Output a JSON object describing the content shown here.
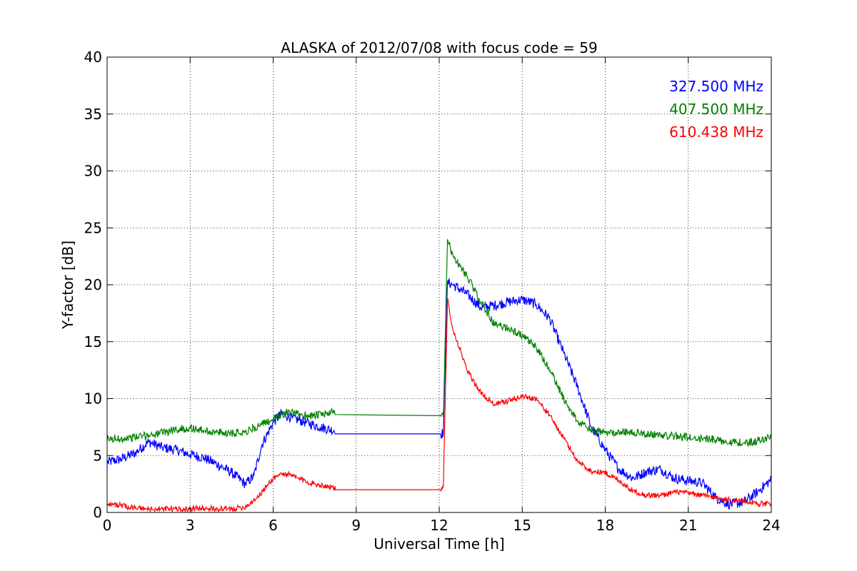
{
  "chart_data": {
    "type": "line",
    "title": "ALASKA of 2012/07/08 with focus code = 59",
    "xlabel": "Universal Time [h]",
    "ylabel": "Y-factor [dB]",
    "xlim": [
      0,
      24
    ],
    "ylim": [
      0,
      40
    ],
    "xticks": [
      0,
      3,
      6,
      9,
      12,
      15,
      18,
      21,
      24
    ],
    "yticks": [
      0,
      5,
      10,
      15,
      20,
      25,
      30,
      35,
      40
    ],
    "grid": true,
    "legend_position": "top-right",
    "series": [
      {
        "name": "327.500 MHz",
        "color": "#0000ff",
        "noise": 0.45,
        "x": [
          0,
          0.5,
          1.0,
          1.5,
          2.0,
          2.5,
          3.0,
          3.5,
          4.0,
          4.5,
          5.0,
          5.3,
          5.6,
          6.0,
          6.3,
          6.7,
          7.2,
          7.7,
          8.2,
          8.25,
          12.05,
          12.15,
          12.3,
          12.5,
          13.0,
          13.5,
          14.0,
          14.5,
          15.0,
          15.5,
          16.0,
          16.5,
          17.0,
          17.5,
          18.0,
          18.5,
          19.0,
          19.5,
          20.0,
          20.5,
          21.0,
          21.5,
          22.0,
          22.5,
          23.0,
          23.5,
          24.0
        ],
        "y": [
          4.4,
          4.7,
          5.2,
          6.2,
          5.7,
          5.5,
          5.1,
          4.8,
          4.2,
          3.5,
          2.5,
          3.2,
          6.0,
          7.9,
          8.7,
          8.3,
          7.9,
          7.5,
          7.2,
          6.9,
          6.9,
          7.0,
          20.2,
          20.0,
          19.2,
          18.0,
          18.2,
          18.5,
          18.7,
          18.3,
          17.0,
          14.0,
          11.0,
          7.5,
          5.5,
          3.8,
          3.0,
          3.6,
          3.8,
          3.0,
          2.8,
          2.6,
          1.3,
          0.7,
          0.9,
          1.8,
          2.9
        ]
      },
      {
        "name": "407.500 MHz",
        "color": "#008000",
        "noise": 0.35,
        "x": [
          0,
          0.5,
          1.0,
          1.5,
          2.0,
          2.5,
          3.0,
          3.5,
          4.0,
          4.5,
          5.0,
          5.5,
          6.0,
          6.5,
          7.0,
          7.5,
          8.2,
          8.25,
          12.05,
          12.15,
          12.3,
          12.5,
          13.0,
          13.5,
          14.0,
          14.5,
          15.0,
          15.5,
          16.0,
          16.5,
          17.0,
          17.5,
          18.0,
          18.5,
          19.0,
          19.5,
          20.0,
          20.5,
          21.0,
          21.5,
          22.0,
          22.5,
          23.0,
          23.5,
          24.0
        ],
        "y": [
          6.4,
          6.5,
          6.6,
          6.8,
          7.0,
          7.3,
          7.4,
          7.2,
          7.0,
          7.0,
          7.1,
          7.6,
          8.2,
          8.8,
          8.6,
          8.5,
          8.8,
          8.6,
          8.5,
          8.4,
          24.0,
          22.5,
          20.8,
          18.5,
          16.5,
          16.2,
          15.5,
          14.5,
          12.5,
          10.0,
          8.0,
          7.2,
          7.0,
          7.1,
          7.0,
          6.9,
          6.8,
          6.7,
          6.6,
          6.5,
          6.4,
          6.2,
          6.1,
          6.3,
          6.6
        ]
      },
      {
        "name": "610.438 MHz",
        "color": "#ff0000",
        "noise": 0.25,
        "x": [
          0,
          0.5,
          1.0,
          1.5,
          2.0,
          2.5,
          3.0,
          3.5,
          4.0,
          4.5,
          5.0,
          5.5,
          6.0,
          6.3,
          6.6,
          7.0,
          7.5,
          8.2,
          8.25,
          12.05,
          12.15,
          12.3,
          12.5,
          12.8,
          13.0,
          13.5,
          14.0,
          14.5,
          15.0,
          15.5,
          16.0,
          16.5,
          17.0,
          17.5,
          18.0,
          18.5,
          19.0,
          19.5,
          20.0,
          20.5,
          21.0,
          21.5,
          22.0,
          22.5,
          23.0,
          23.5,
          24.0
        ],
        "y": [
          0.8,
          0.6,
          0.4,
          0.3,
          0.3,
          0.3,
          0.3,
          0.4,
          0.3,
          0.3,
          0.5,
          1.5,
          3.0,
          3.4,
          3.3,
          2.9,
          2.5,
          2.2,
          2.0,
          2.0,
          2.2,
          18.8,
          16.0,
          14.0,
          12.5,
          10.5,
          9.5,
          9.8,
          10.2,
          10.0,
          8.5,
          6.5,
          4.5,
          3.6,
          3.5,
          2.8,
          1.9,
          1.5,
          1.5,
          1.8,
          1.7,
          1.5,
          1.3,
          1.1,
          1.0,
          0.8,
          0.7
        ]
      }
    ]
  }
}
